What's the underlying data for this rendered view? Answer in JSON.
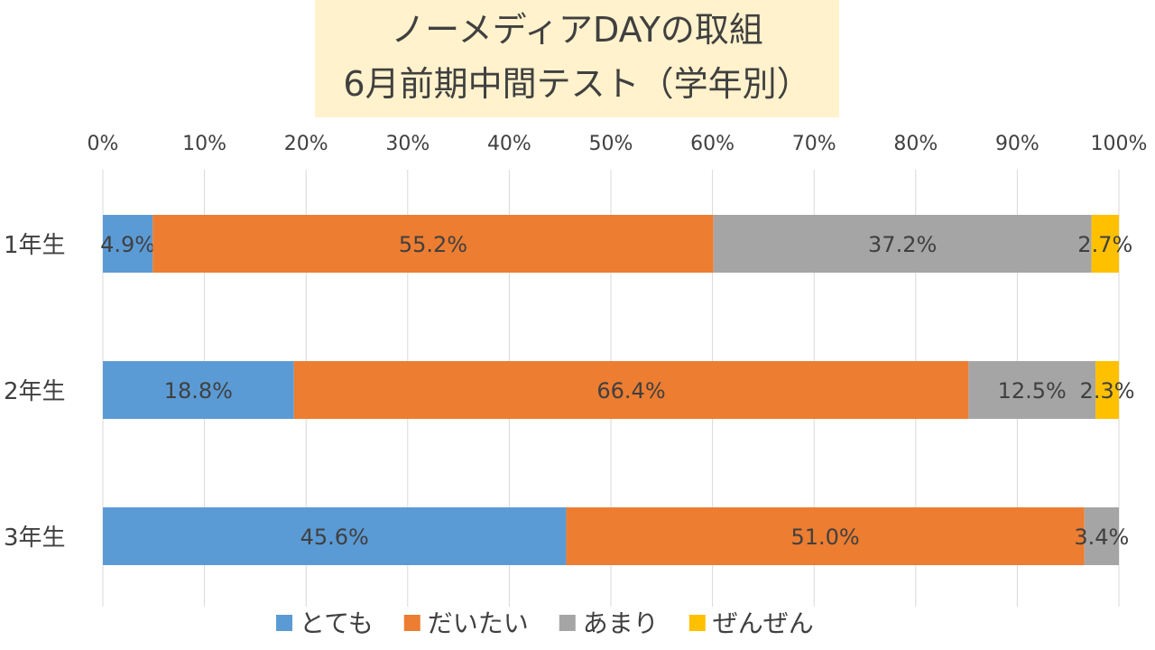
{
  "chart_data": {
    "type": "bar",
    "orientation": "horizontal",
    "stacked": true,
    "normalized": true,
    "title_lines": [
      "ノーメディアDAYの取組",
      "6月前期中間テスト（学年別）"
    ],
    "categories": [
      "1年生",
      "2年生",
      "3年生"
    ],
    "series": [
      {
        "name": "とても",
        "color": "#5b9bd5",
        "values": [
          4.9,
          18.8,
          45.6
        ]
      },
      {
        "name": "だいたい",
        "color": "#ed7d31",
        "values": [
          55.2,
          66.4,
          51.0
        ]
      },
      {
        "name": "あまり",
        "color": "#a5a5a5",
        "values": [
          37.2,
          12.5,
          3.4
        ]
      },
      {
        "name": "ぜんぜん",
        "color": "#ffc000",
        "values": [
          2.7,
          2.3,
          0
        ]
      }
    ],
    "data_labels": [
      [
        "4.9%",
        "18.8%",
        "45.6%"
      ],
      [
        "55.2%",
        "66.4%",
        "51.0%"
      ],
      [
        "37.2%",
        "12.5%",
        "3.4%"
      ],
      [
        "2.7%",
        "2.3%",
        ""
      ]
    ],
    "x_ticks": [
      "0%",
      "10%",
      "20%",
      "30%",
      "40%",
      "50%",
      "60%",
      "70%",
      "80%",
      "90%",
      "100%"
    ],
    "xlim": [
      0,
      100
    ],
    "grid": true,
    "legend_position": "bottom",
    "title_background": "#fff2cc",
    "text_color": "#404040",
    "grid_color": "#d9d9d9"
  }
}
